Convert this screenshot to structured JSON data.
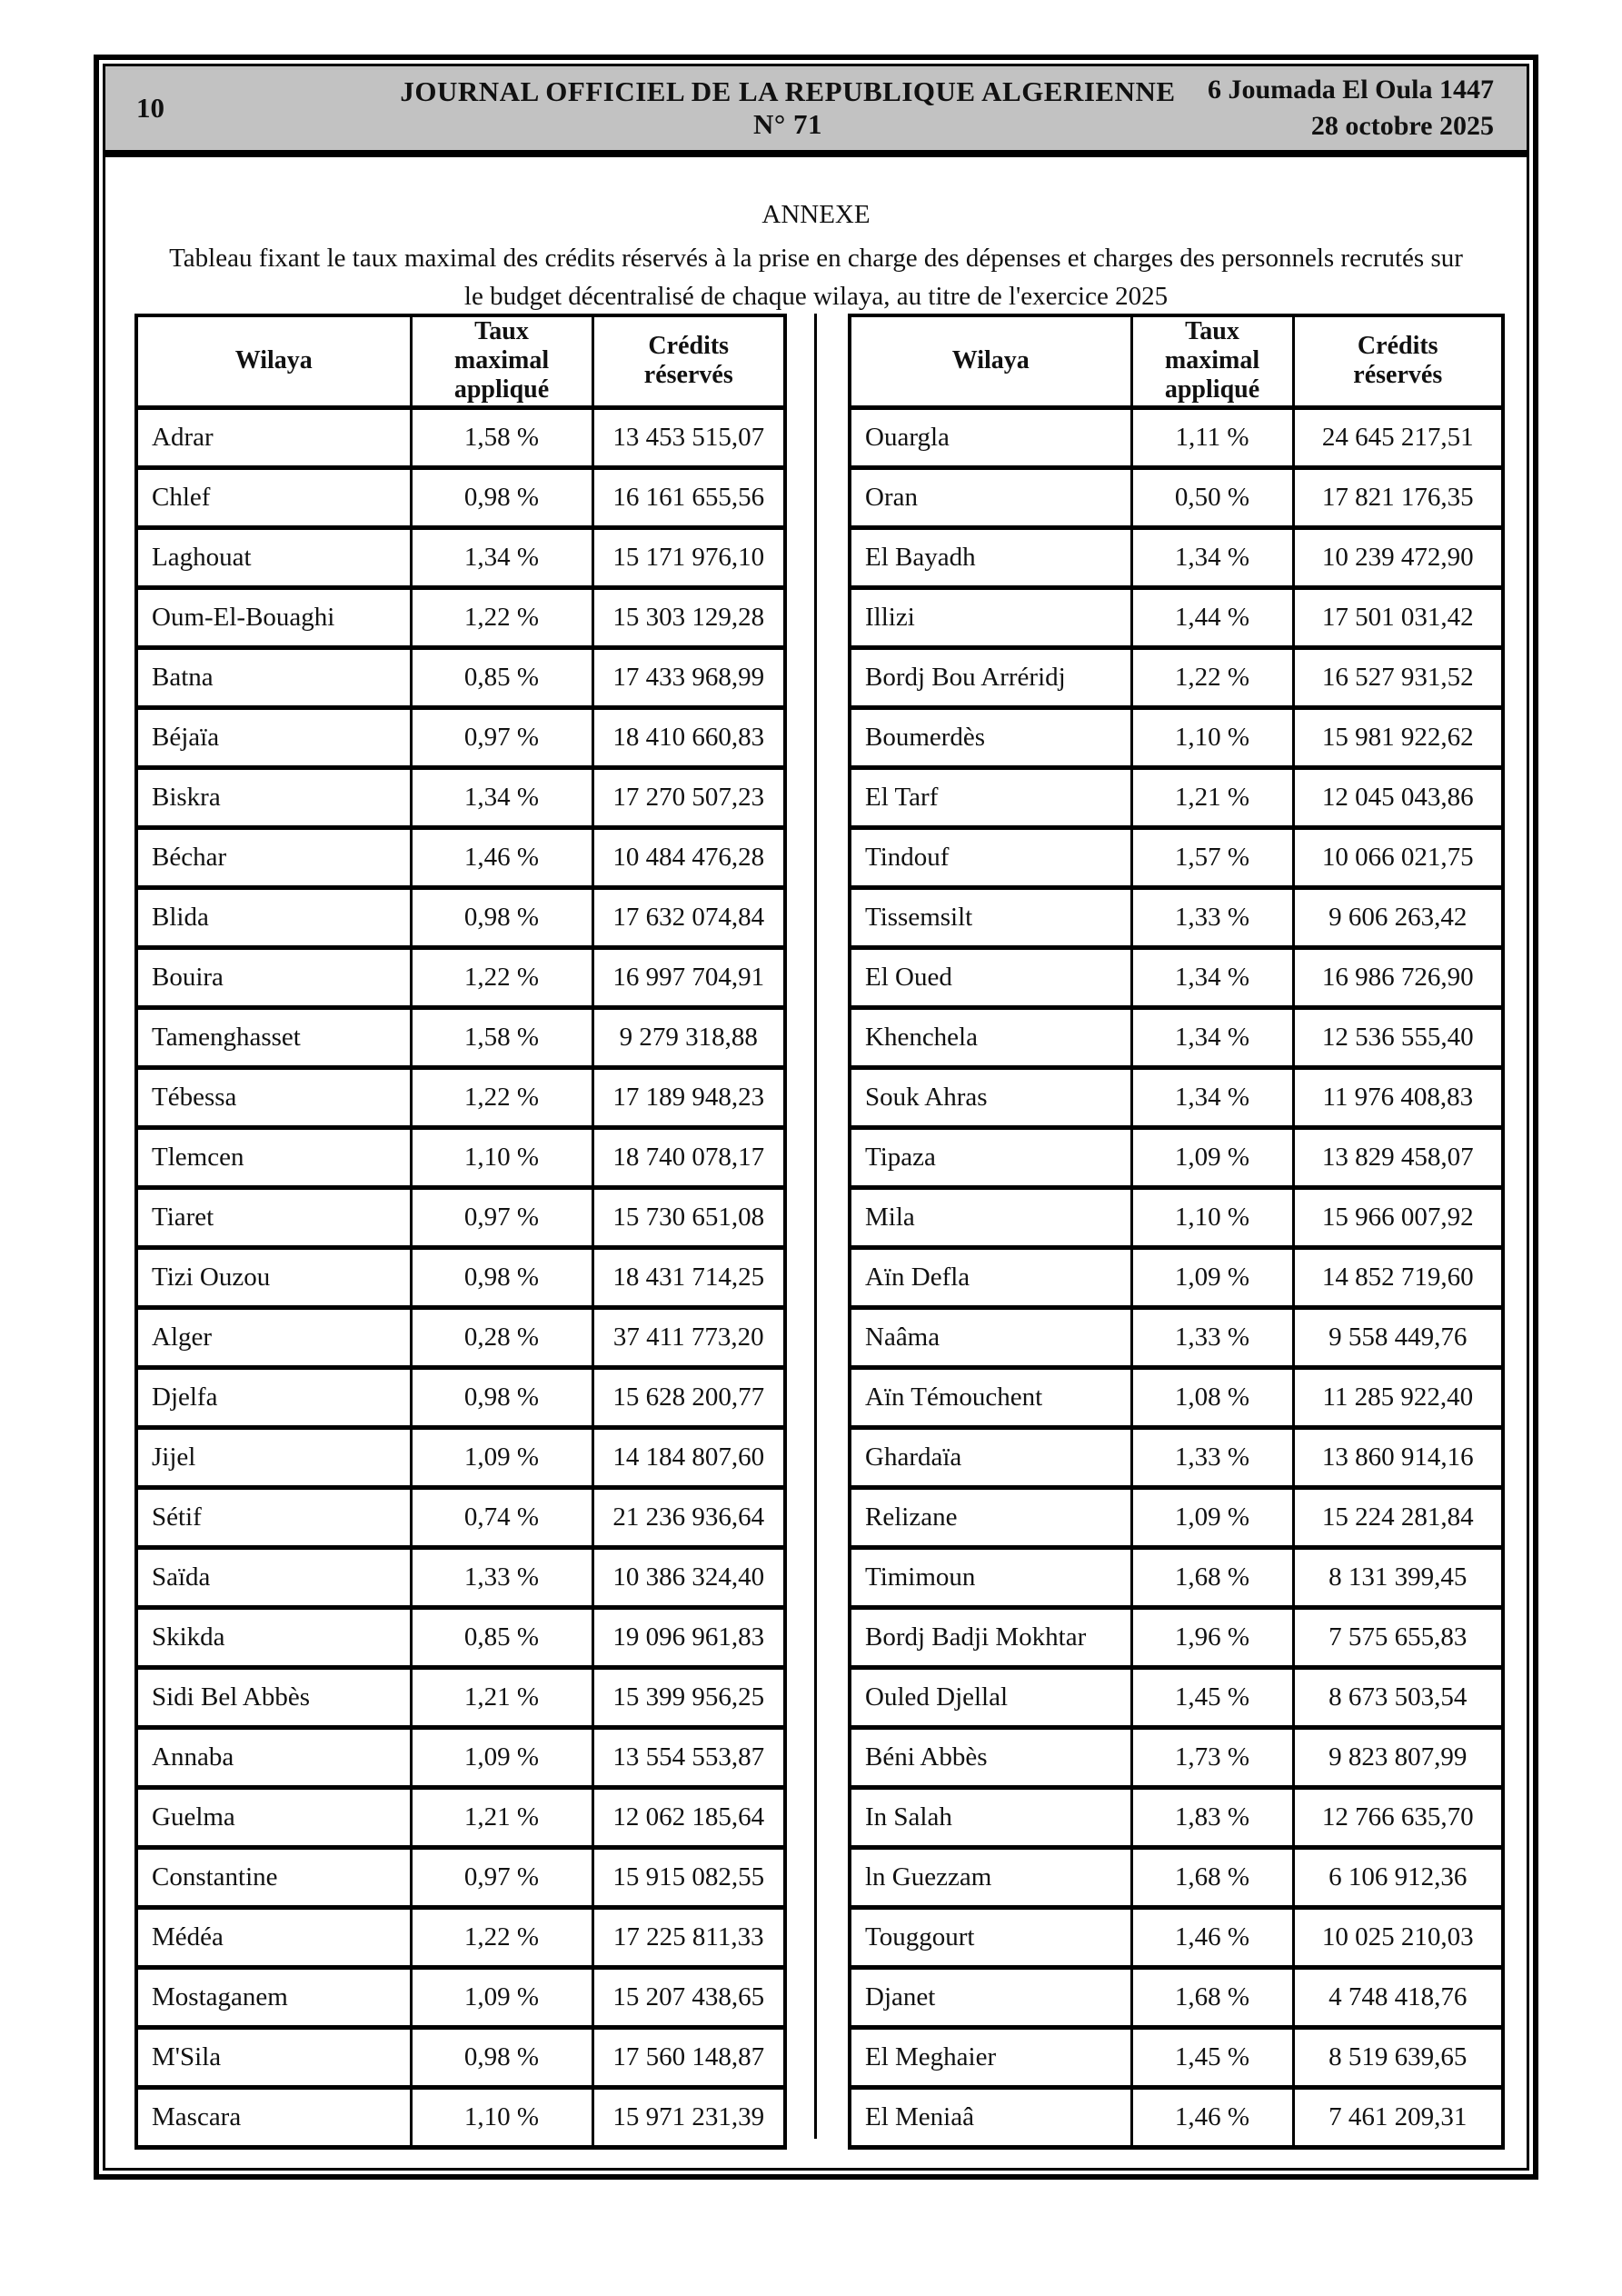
{
  "header": {
    "page_number": "10",
    "journal_title": "JOURNAL OFFICIEL DE LA REPUBLIQUE ALGERIENNE N° 71",
    "date_hijri": "6 Joumada El Oula 1447",
    "date_gregorian": "28 octobre 2025"
  },
  "annexe": {
    "title": "ANNEXE",
    "subtitle_line1": "Tableau fixant le taux maximal des crédits réservés à la prise en charge des dépenses et charges des personnels recrutés sur",
    "subtitle_line2": "le budget décentralisé de chaque wilaya, au titre de l'exercice 2025"
  },
  "column_headers": {
    "wilaya": "Wilaya",
    "taux": "Taux maximal appliqué",
    "credits": "Crédits réservés"
  },
  "left_table": {
    "rows": [
      {
        "wilaya": "Adrar",
        "taux": "1,58 %",
        "credits": "13 453 515,07"
      },
      {
        "wilaya": "Chlef",
        "taux": "0,98 %",
        "credits": "16 161 655,56"
      },
      {
        "wilaya": "Laghouat",
        "taux": "1,34 %",
        "credits": "15 171 976,10"
      },
      {
        "wilaya": "Oum-El-Bouaghi",
        "taux": "1,22 %",
        "credits": "15 303 129,28"
      },
      {
        "wilaya": "Batna",
        "taux": "0,85 %",
        "credits": "17 433 968,99"
      },
      {
        "wilaya": "Béjaïa",
        "taux": "0,97 %",
        "credits": "18 410 660,83"
      },
      {
        "wilaya": "Biskra",
        "taux": "1,34 %",
        "credits": "17 270 507,23"
      },
      {
        "wilaya": "Béchar",
        "taux": "1,46 %",
        "credits": "10 484 476,28"
      },
      {
        "wilaya": "Blida",
        "taux": "0,98 %",
        "credits": "17 632 074,84"
      },
      {
        "wilaya": "Bouira",
        "taux": "1,22 %",
        "credits": "16 997 704,91"
      },
      {
        "wilaya": "Tamenghasset",
        "taux": "1,58 %",
        "credits": "9 279 318,88"
      },
      {
        "wilaya": "Tébessa",
        "taux": "1,22 %",
        "credits": "17 189 948,23"
      },
      {
        "wilaya": "Tlemcen",
        "taux": "1,10 %",
        "credits": "18 740 078,17"
      },
      {
        "wilaya": "Tiaret",
        "taux": "0,97 %",
        "credits": "15 730 651,08"
      },
      {
        "wilaya": "Tizi Ouzou",
        "taux": "0,98 %",
        "credits": "18 431 714,25"
      },
      {
        "wilaya": "Alger",
        "taux": "0,28 %",
        "credits": "37 411 773,20"
      },
      {
        "wilaya": "Djelfa",
        "taux": "0,98 %",
        "credits": "15 628 200,77"
      },
      {
        "wilaya": "Jijel",
        "taux": "1,09 %",
        "credits": "14 184 807,60"
      },
      {
        "wilaya": "Sétif",
        "taux": "0,74 %",
        "credits": "21 236 936,64"
      },
      {
        "wilaya": "Saïda",
        "taux": "1,33 %",
        "credits": "10 386 324,40"
      },
      {
        "wilaya": "Skikda",
        "taux": "0,85 %",
        "credits": "19 096 961,83"
      },
      {
        "wilaya": "Sidi Bel Abbès",
        "taux": "1,21 %",
        "credits": "15 399 956,25"
      },
      {
        "wilaya": "Annaba",
        "taux": "1,09 %",
        "credits": "13 554 553,87"
      },
      {
        "wilaya": "Guelma",
        "taux": "1,21 %",
        "credits": "12 062 185,64"
      },
      {
        "wilaya": "Constantine",
        "taux": "0,97 %",
        "credits": "15 915 082,55"
      },
      {
        "wilaya": "Médéa",
        "taux": "1,22 %",
        "credits": "17 225 811,33"
      },
      {
        "wilaya": "Mostaganem",
        "taux": "1,09 %",
        "credits": "15 207 438,65"
      },
      {
        "wilaya": "M'Sila",
        "taux": "0,98 %",
        "credits": "17 560 148,87"
      },
      {
        "wilaya": "Mascara",
        "taux": "1,10 %",
        "credits": "15 971 231,39"
      }
    ]
  },
  "right_table": {
    "rows": [
      {
        "wilaya": "Ouargla",
        "taux": "1,11 %",
        "credits": "24 645 217,51"
      },
      {
        "wilaya": "Oran",
        "taux": "0,50 %",
        "credits": "17 821 176,35"
      },
      {
        "wilaya": "El Bayadh",
        "taux": "1,34 %",
        "credits": "10 239 472,90"
      },
      {
        "wilaya": "Illizi",
        "taux": "1,44 %",
        "credits": "17 501 031,42"
      },
      {
        "wilaya": "Bordj Bou Arréridj",
        "taux": "1,22 %",
        "credits": "16 527 931,52"
      },
      {
        "wilaya": "Boumerdès",
        "taux": "1,10 %",
        "credits": "15 981 922,62"
      },
      {
        "wilaya": "El Tarf",
        "taux": "1,21 %",
        "credits": "12 045 043,86"
      },
      {
        "wilaya": "Tindouf",
        "taux": "1,57 %",
        "credits": "10 066 021,75"
      },
      {
        "wilaya": "Tissemsilt",
        "taux": "1,33 %",
        "credits": "9 606 263,42"
      },
      {
        "wilaya": "El Oued",
        "taux": "1,34 %",
        "credits": "16 986 726,90"
      },
      {
        "wilaya": "Khenchela",
        "taux": "1,34 %",
        "credits": "12 536 555,40"
      },
      {
        "wilaya": "Souk Ahras",
        "taux": "1,34 %",
        "credits": "11 976 408,83"
      },
      {
        "wilaya": "Tipaza",
        "taux": "1,09 %",
        "credits": "13 829 458,07"
      },
      {
        "wilaya": "Mila",
        "taux": "1,10 %",
        "credits": "15 966 007,92"
      },
      {
        "wilaya": "Aïn Defla",
        "taux": "1,09 %",
        "credits": "14 852 719,60"
      },
      {
        "wilaya": "Naâma",
        "taux": "1,33 %",
        "credits": "9 558 449,76"
      },
      {
        "wilaya": "Aïn Témouchent",
        "taux": "1,08 %",
        "credits": "11 285 922,40"
      },
      {
        "wilaya": "Ghardaïa",
        "taux": "1,33 %",
        "credits": "13 860 914,16"
      },
      {
        "wilaya": "Relizane",
        "taux": "1,09 %",
        "credits": "15 224 281,84"
      },
      {
        "wilaya": "Timimoun",
        "taux": "1,68 %",
        "credits": "8 131 399,45"
      },
      {
        "wilaya": "Bordj Badji Mokhtar",
        "taux": "1,96 %",
        "credits": "7 575 655,83"
      },
      {
        "wilaya": "Ouled Djellal",
        "taux": "1,45 %",
        "credits": "8 673 503,54"
      },
      {
        "wilaya": "Béni Abbès",
        "taux": "1,73 %",
        "credits": "9 823 807,99"
      },
      {
        "wilaya": "In Salah",
        "taux": "1,83 %",
        "credits": "12 766 635,70"
      },
      {
        "wilaya": "ln Guezzam",
        "taux": "1,68 %",
        "credits": "6 106 912,36"
      },
      {
        "wilaya": "Touggourt",
        "taux": "1,46 %",
        "credits": "10 025 210,03"
      },
      {
        "wilaya": "Djanet",
        "taux": "1,68 %",
        "credits": "4 748 418,76"
      },
      {
        "wilaya": "El Meghaier",
        "taux": "1,45 %",
        "credits": "8 519 639,65"
      },
      {
        "wilaya": "El Meniaâ",
        "taux": "1,46 %",
        "credits": "7 461 209,31"
      }
    ]
  },
  "colors": {
    "header_bar": "#c2c2c2",
    "border": "#000000",
    "text": "#111111"
  }
}
